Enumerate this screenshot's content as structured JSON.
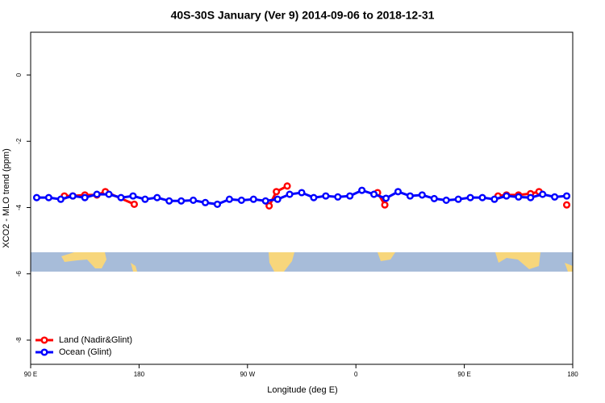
{
  "chart_data": {
    "type": "line",
    "title": "40S-30S January (Ver 9)   2014-09-06 to 2018-12-31",
    "x_label": "Longitude (deg E)",
    "y_label": "XCO2 - MLO trend (ppm)",
    "xlim": [
      90,
      540
    ],
    "ylim": [
      -8.73,
      1.29
    ],
    "xticks": [
      {
        "value": 90,
        "label": "90 E"
      },
      180,
      {
        "value": 270,
        "label": "90 W"
      },
      {
        "value": 360,
        "label": "0"
      },
      {
        "value": 450,
        "label": "90 E"
      },
      {
        "value": 540,
        "label": "180"
      }
    ],
    "yticks": [
      0,
      -2,
      -4,
      -6,
      -8
    ],
    "legend": "bottom-left",
    "series": [
      {
        "name": "Land (Nadir&Glint)",
        "color": "#ff0000",
        "x": [
          118,
          125,
          135,
          145,
          152,
          176,
          null,
          288,
          294,
          303,
          null,
          378,
          384,
          null,
          478,
          485,
          495,
          505,
          512,
          null,
          535
        ],
        "values": [
          -3.65,
          -3.65,
          -3.62,
          -3.62,
          -3.52,
          -3.9,
          null,
          -3.95,
          -3.52,
          -3.35,
          null,
          -3.55,
          -3.92,
          null,
          -3.65,
          -3.62,
          -3.62,
          -3.58,
          -3.52,
          null,
          -3.92
        ]
      },
      {
        "name": "Ocean (Glint)",
        "color": "#0000ff",
        "x": [
          95,
          105,
          115,
          125,
          135,
          145,
          155,
          165,
          175,
          185,
          195,
          205,
          215,
          225,
          235,
          245,
          255,
          265,
          275,
          285,
          295,
          305,
          315,
          325,
          335,
          345,
          355,
          365,
          375,
          385,
          395,
          405,
          415,
          425,
          435,
          445,
          455,
          465,
          475,
          485,
          495,
          505,
          515,
          525,
          535
        ],
        "values": [
          -3.7,
          -3.7,
          -3.75,
          -3.65,
          -3.7,
          -3.6,
          -3.6,
          -3.7,
          -3.65,
          -3.75,
          -3.7,
          -3.8,
          -3.8,
          -3.78,
          -3.85,
          -3.9,
          -3.75,
          -3.78,
          -3.75,
          -3.8,
          -3.75,
          -3.6,
          -3.55,
          -3.7,
          -3.65,
          -3.68,
          -3.65,
          -3.48,
          -3.6,
          -3.72,
          -3.52,
          -3.65,
          -3.62,
          -3.73,
          -3.78,
          -3.75,
          -3.7,
          -3.7,
          -3.75,
          -3.65,
          -3.68,
          -3.7,
          -3.6,
          -3.68,
          -3.65
        ]
      }
    ]
  }
}
